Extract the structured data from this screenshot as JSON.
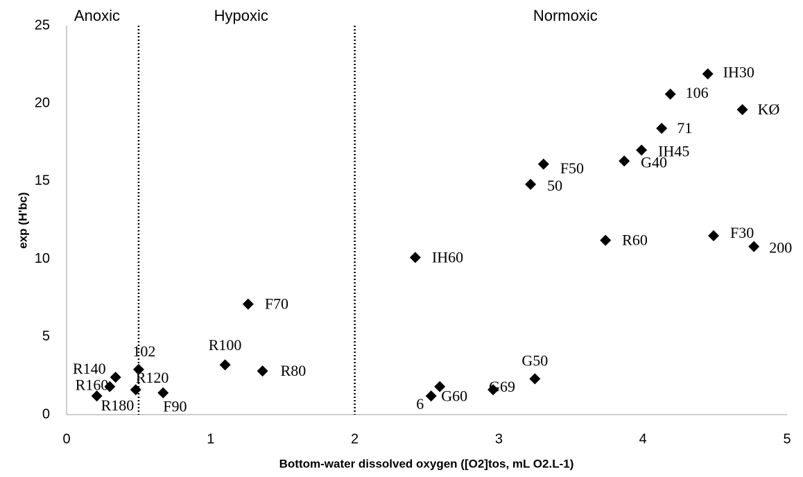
{
  "chart_data": {
    "type": "scatter",
    "x_label": "Bottom-water dissolved oxygen ([O2]tos, mL O2.L-1)",
    "y_label": "exp (H'bc)",
    "xlim": [
      0,
      5
    ],
    "xticks": [
      0,
      1,
      2,
      3,
      4,
      5
    ],
    "ylim": [
      0,
      25
    ],
    "yticks": [
      0,
      5,
      10,
      15,
      20,
      25
    ],
    "zones": [
      "Anoxic",
      "Hypoxic",
      "Normoxic"
    ],
    "dividers": [
      0.5,
      2
    ],
    "color": "#000000",
    "point_labels": [
      "IH30",
      "106",
      "KØ",
      "71",
      "IH45",
      "F50",
      "G40",
      "50",
      "R60",
      "F30",
      "200",
      "IH60",
      "F70",
      "R100",
      "R80",
      "102",
      "R140",
      "R160",
      "R180",
      "R120",
      "F90",
      "6",
      "G60",
      "G69",
      "G50"
    ],
    "x": [
      4.45,
      4.19,
      4.69,
      4.13,
      3.99,
      3.31,
      3.87,
      3.22,
      3.74,
      4.49,
      4.77,
      2.42,
      1.26,
      1.1,
      1.36,
      0.5,
      0.34,
      0.3,
      0.21,
      0.48,
      0.67,
      2.53,
      2.59,
      2.96,
      3.25
    ],
    "values": [
      21.9,
      20.6,
      19.6,
      18.4,
      17.0,
      16.1,
      16.3,
      14.8,
      11.2,
      11.5,
      10.8,
      10.1,
      7.1,
      3.2,
      2.8,
      2.9,
      2.4,
      1.8,
      1.2,
      1.6,
      1.4,
      1.2,
      1.8,
      1.6,
      2.3
    ]
  }
}
